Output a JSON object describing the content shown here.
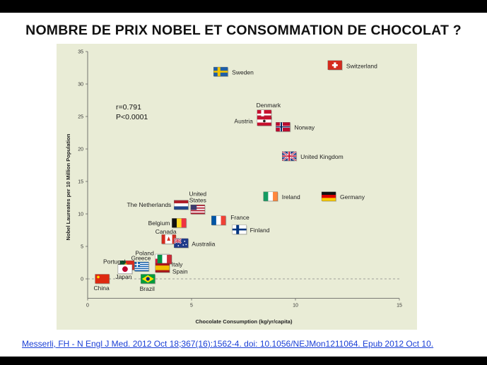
{
  "slide": {
    "title": "NOMBRE DE PRIX NOBEL ET CONSOMMATION DE  CHOCOLAT ?",
    "citation": "Messerli, FH  - N Engl J Med. 2012 Oct 18;367(16):1562-4.  doi: 10.1056/NEJMon1211064.  Epub 2012 Oct 10."
  },
  "chart_data": {
    "type": "scatter",
    "xlabel": "Chocolate Consumption (kg/yr/capita)",
    "ylabel": "Nobel Laureates per 10 Million Population",
    "xlim": [
      0,
      15
    ],
    "ylim": [
      -3,
      35
    ],
    "x_ticks": [
      0,
      5,
      10,
      15
    ],
    "y_ticks": [
      0,
      5,
      10,
      15,
      20,
      25,
      30,
      35
    ],
    "annotations": [
      "r=0.791",
      "P<0.0001"
    ],
    "points": [
      {
        "country": "Sweden",
        "x": 6.4,
        "y": 31.9
      },
      {
        "country": "Switzerland",
        "x": 11.9,
        "y": 32.9
      },
      {
        "country": "Denmark",
        "x": 8.5,
        "y": 25.3
      },
      {
        "country": "Austria",
        "x": 8.5,
        "y": 24.3
      },
      {
        "country": "Norway",
        "x": 9.4,
        "y": 23.4
      },
      {
        "country": "United Kingdom",
        "x": 9.7,
        "y": 18.9
      },
      {
        "country": "Ireland",
        "x": 8.8,
        "y": 12.7
      },
      {
        "country": "Germany",
        "x": 11.6,
        "y": 12.7
      },
      {
        "country": "United States",
        "x": 5.3,
        "y": 10.7
      },
      {
        "country": "The Netherlands",
        "x": 4.5,
        "y": 11.4
      },
      {
        "country": "France",
        "x": 6.3,
        "y": 9.0
      },
      {
        "country": "Finland",
        "x": 7.3,
        "y": 7.6
      },
      {
        "country": "Belgium",
        "x": 4.4,
        "y": 8.6
      },
      {
        "country": "Canada",
        "x": 3.9,
        "y": 6.1
      },
      {
        "country": "Australia",
        "x": 4.5,
        "y": 5.5
      },
      {
        "country": "Poland",
        "x": 3.6,
        "y": 3.1
      },
      {
        "country": "Italy",
        "x": 3.7,
        "y": 3.0
      },
      {
        "country": "Greece",
        "x": 2.6,
        "y": 1.9
      },
      {
        "country": "Portugal",
        "x": 1.9,
        "y": 2.1
      },
      {
        "country": "Spain",
        "x": 3.6,
        "y": 1.7
      },
      {
        "country": "Japan",
        "x": 1.8,
        "y": 1.5
      },
      {
        "country": "China",
        "x": 0.7,
        "y": 0.0
      },
      {
        "country": "Brazil",
        "x": 2.9,
        "y": 0.0
      }
    ]
  }
}
